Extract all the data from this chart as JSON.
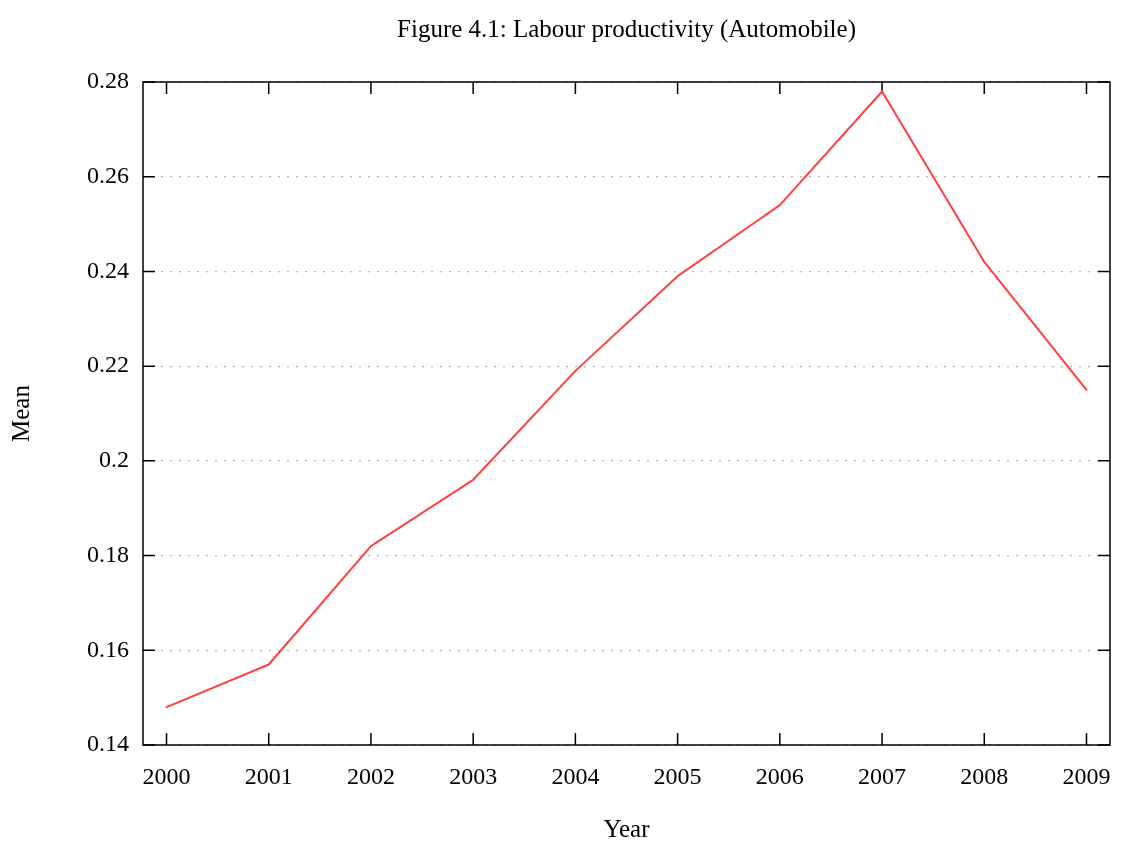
{
  "chart_data": {
    "type": "line",
    "title": "Figure 4.1: Labour productivity (Automobile)",
    "xlabel": "Year",
    "ylabel": "Mean",
    "categories": [
      "2000",
      "2001",
      "2002",
      "2003",
      "2004",
      "2005",
      "2006",
      "2007",
      "2008",
      "2009"
    ],
    "series": [
      {
        "color": "#ff4040",
        "values": [
          0.148,
          0.157,
          0.182,
          0.196,
          0.219,
          0.239,
          0.254,
          0.278,
          0.242,
          0.215
        ]
      }
    ],
    "ylim": [
      0.14,
      0.28
    ],
    "yticks": [
      0.14,
      0.16,
      0.18,
      0.2,
      0.22,
      0.24,
      0.26,
      0.28
    ],
    "grid": "y",
    "marker": "none"
  }
}
